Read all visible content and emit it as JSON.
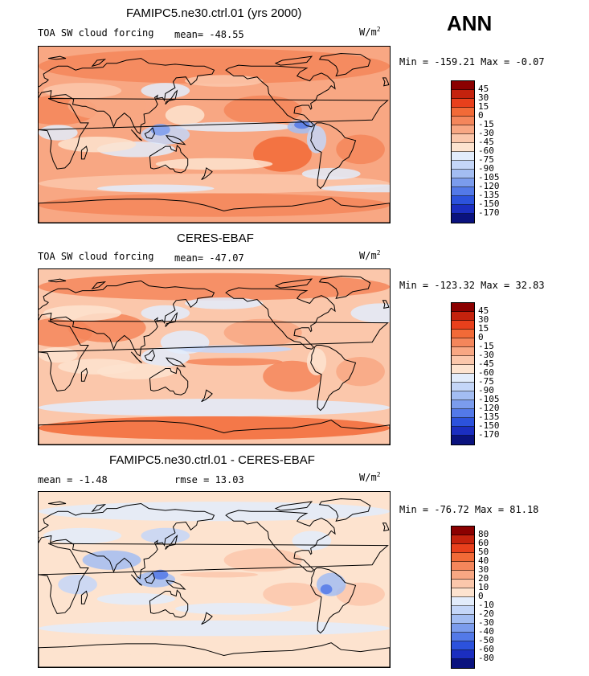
{
  "season": "ANN",
  "units_base": "W/m",
  "units_exp": "2",
  "panels": [
    {
      "title": "FAMIPC5.ne30.ctrl.01 (yrs 2000)",
      "field": "TOA SW cloud forcing",
      "mean": "mean= -48.55",
      "minmax": "Min = -159.21 Max =  -0.07",
      "levels": [
        "45",
        "30",
        "15",
        "0",
        "-15",
        "-30",
        "-45",
        "-60",
        "-75",
        "-90",
        "-105",
        "-120",
        "-135",
        "-150",
        "-170"
      ],
      "colors": [
        "#8b0000",
        "#c4220d",
        "#e8401c",
        "#f26a37",
        "#f4865b",
        "#f8a783",
        "#fbc7ab",
        "#fde3cf",
        "#e2ecfb",
        "#c4d6f8",
        "#a3bdf2",
        "#7b9ced",
        "#5379e8",
        "#2c52dc",
        "#1b2ec0",
        "#0a127e"
      ],
      "style": "model"
    },
    {
      "title": "CERES-EBAF",
      "field": "TOA SW cloud forcing",
      "mean": "mean= -47.07",
      "minmax": "Min = -123.32 Max =  32.83",
      "levels": [
        "45",
        "30",
        "15",
        "0",
        "-15",
        "-30",
        "-45",
        "-60",
        "-75",
        "-90",
        "-105",
        "-120",
        "-135",
        "-150",
        "-170"
      ],
      "colors": [
        "#8b0000",
        "#c4220d",
        "#e8401c",
        "#f26a37",
        "#f4865b",
        "#f8a783",
        "#fbc7ab",
        "#fde3cf",
        "#e2ecfb",
        "#c4d6f8",
        "#a3bdf2",
        "#7b9ced",
        "#5379e8",
        "#2c52dc",
        "#1b2ec0",
        "#0a127e"
      ],
      "style": "obs"
    },
    {
      "title": "FAMIPC5.ne30.ctrl.01 - CERES-EBAF",
      "field": "",
      "mean": "mean =  -1.48",
      "rmse": "rmse =  13.03",
      "minmax": "Min = -76.72 Max =  81.18",
      "levels": [
        "80",
        "60",
        "50",
        "40",
        "30",
        "20",
        "10",
        "0",
        "-10",
        "-20",
        "-30",
        "-40",
        "-50",
        "-60",
        "-80"
      ],
      "colors": [
        "#8b0000",
        "#c4220d",
        "#e8401c",
        "#f26a37",
        "#f4865b",
        "#f8a783",
        "#fbc7ab",
        "#fde3cf",
        "#e2ecfb",
        "#c4d6f8",
        "#a3bdf2",
        "#7b9ced",
        "#5379e8",
        "#2c52dc",
        "#1b2ec0",
        "#0a127e"
      ],
      "style": "diff"
    }
  ]
}
